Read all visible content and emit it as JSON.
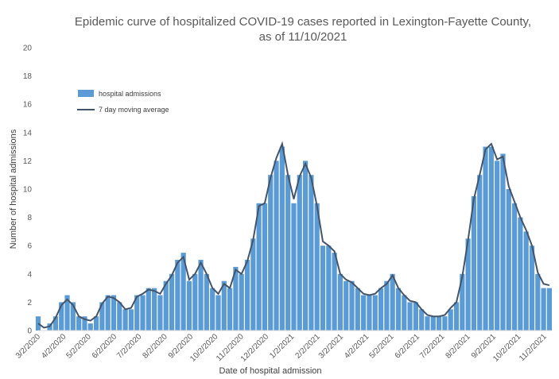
{
  "chart_data": {
    "type": "bar",
    "title_lines": [
      "Epidemic curve of hospitalized COVID-19 cases reported in Lexington-Fayette County,",
      "as of 11/10/2021"
    ],
    "xlabel": "Date of hospital admission",
    "ylabel": "Number of hospital admissions",
    "ylim": [
      0,
      20
    ],
    "yticks": [
      0,
      2,
      4,
      6,
      8,
      10,
      12,
      14,
      16,
      18,
      20
    ],
    "x_range": [
      "3/2/2020",
      "11/10/2021"
    ],
    "xtick_labels": [
      "3/2/2020",
      "4/2/2020",
      "5/2/2020",
      "6/2/2020",
      "7/2/2020",
      "8/2/2020",
      "9/2/2020",
      "10/2/2020",
      "11/2/2020",
      "12/2/2020",
      "1/2/2021",
      "2/2/2021",
      "3/2/2021",
      "4/2/2021",
      "5/2/2021",
      "6/2/2021",
      "7/2/2021",
      "8/2/2021",
      "9/2/2021",
      "10/2/2021",
      "11/2/2021"
    ],
    "grid": false,
    "legend_position": "top-left",
    "colors": {
      "bars": "#5b9bd5",
      "line": "#44546a"
    },
    "x_weeks": [
      "3/2/2020",
      "3/9/2020",
      "3/16/2020",
      "3/23/2020",
      "3/30/2020",
      "4/6/2020",
      "4/13/2020",
      "4/20/2020",
      "4/27/2020",
      "5/4/2020",
      "5/11/2020",
      "5/18/2020",
      "5/25/2020",
      "6/1/2020",
      "6/8/2020",
      "6/15/2020",
      "6/22/2020",
      "6/29/2020",
      "7/6/2020",
      "7/13/2020",
      "7/20/2020",
      "7/27/2020",
      "8/3/2020",
      "8/10/2020",
      "8/17/2020",
      "8/24/2020",
      "8/31/2020",
      "9/7/2020",
      "9/14/2020",
      "9/21/2020",
      "9/28/2020",
      "10/5/2020",
      "10/12/2020",
      "10/19/2020",
      "10/26/2020",
      "11/2/2020",
      "11/9/2020",
      "11/16/2020",
      "11/23/2020",
      "11/30/2020",
      "12/7/2020",
      "12/14/2020",
      "12/21/2020",
      "12/28/2020",
      "1/4/2021",
      "1/11/2021",
      "1/18/2021",
      "1/25/2021",
      "2/1/2021",
      "2/8/2021",
      "2/15/2021",
      "2/22/2021",
      "3/1/2021",
      "3/8/2021",
      "3/15/2021",
      "3/22/2021",
      "3/29/2021",
      "4/5/2021",
      "4/12/2021",
      "4/19/2021",
      "4/26/2021",
      "5/3/2021",
      "5/10/2021",
      "5/17/2021",
      "5/24/2021",
      "5/31/2021",
      "6/7/2021",
      "6/14/2021",
      "6/21/2021",
      "6/28/2021",
      "7/5/2021",
      "7/12/2021",
      "7/19/2021",
      "7/26/2021",
      "8/2/2021",
      "8/9/2021",
      "8/16/2021",
      "8/23/2021",
      "8/30/2021",
      "9/6/2021",
      "9/13/2021",
      "9/20/2021",
      "9/27/2021",
      "10/4/2021",
      "10/11/2021",
      "10/18/2021",
      "10/25/2021",
      "11/1/2021",
      "11/8/2021"
    ],
    "series": [
      {
        "name": "hospital admissions",
        "type": "bar",
        "values": [
          1,
          0,
          0.5,
          1,
          2,
          2.5,
          2,
          1,
          1,
          0.5,
          1,
          2,
          2.5,
          2.5,
          2,
          1.5,
          1.5,
          2.5,
          2.5,
          3,
          3,
          2.5,
          3.5,
          4,
          5,
          5.5,
          3.5,
          4,
          5,
          4,
          3,
          2.5,
          3.5,
          3,
          4.5,
          4,
          5,
          6.5,
          9,
          9,
          11,
          12,
          13,
          11,
          9,
          11,
          12,
          11,
          9,
          6,
          6,
          5.5,
          4,
          3.5,
          3.5,
          3,
          2.5,
          2.5,
          2.5,
          3,
          3.5,
          4,
          3,
          2.5,
          2,
          2,
          1.5,
          1,
          1,
          1,
          1,
          1.5,
          2,
          4,
          6.5,
          9.5,
          11,
          13,
          13,
          12,
          12.5,
          10,
          9,
          8,
          7,
          6,
          4,
          3,
          3
        ]
      },
      {
        "name": "7 day moving average",
        "type": "line",
        "values": [
          0.5,
          0.2,
          0.3,
          0.9,
          1.8,
          2.2,
          1.8,
          1.0,
          0.8,
          0.7,
          1.0,
          1.9,
          2.4,
          2.3,
          2.0,
          1.5,
          1.6,
          2.4,
          2.6,
          2.9,
          2.8,
          2.6,
          3.3,
          3.9,
          4.8,
          5.2,
          3.6,
          4.0,
          4.8,
          4.0,
          3.0,
          2.6,
          3.3,
          3.0,
          4.3,
          4.0,
          4.9,
          6.4,
          8.8,
          9.0,
          10.8,
          12.2,
          13.2,
          11.0,
          9.3,
          10.9,
          11.8,
          10.8,
          8.8,
          6.3,
          6.0,
          5.6,
          4.0,
          3.6,
          3.4,
          3.0,
          2.6,
          2.5,
          2.6,
          3.0,
          3.3,
          3.9,
          3.0,
          2.5,
          2.1,
          2.0,
          1.5,
          1.1,
          1.0,
          1.0,
          1.1,
          1.6,
          2.0,
          3.8,
          6.4,
          9.3,
          11.0,
          12.8,
          13.2,
          12.1,
          12.3,
          10.2,
          9.1,
          8.0,
          7.1,
          6.0,
          4.1,
          3.3,
          3.2
        ]
      }
    ]
  }
}
